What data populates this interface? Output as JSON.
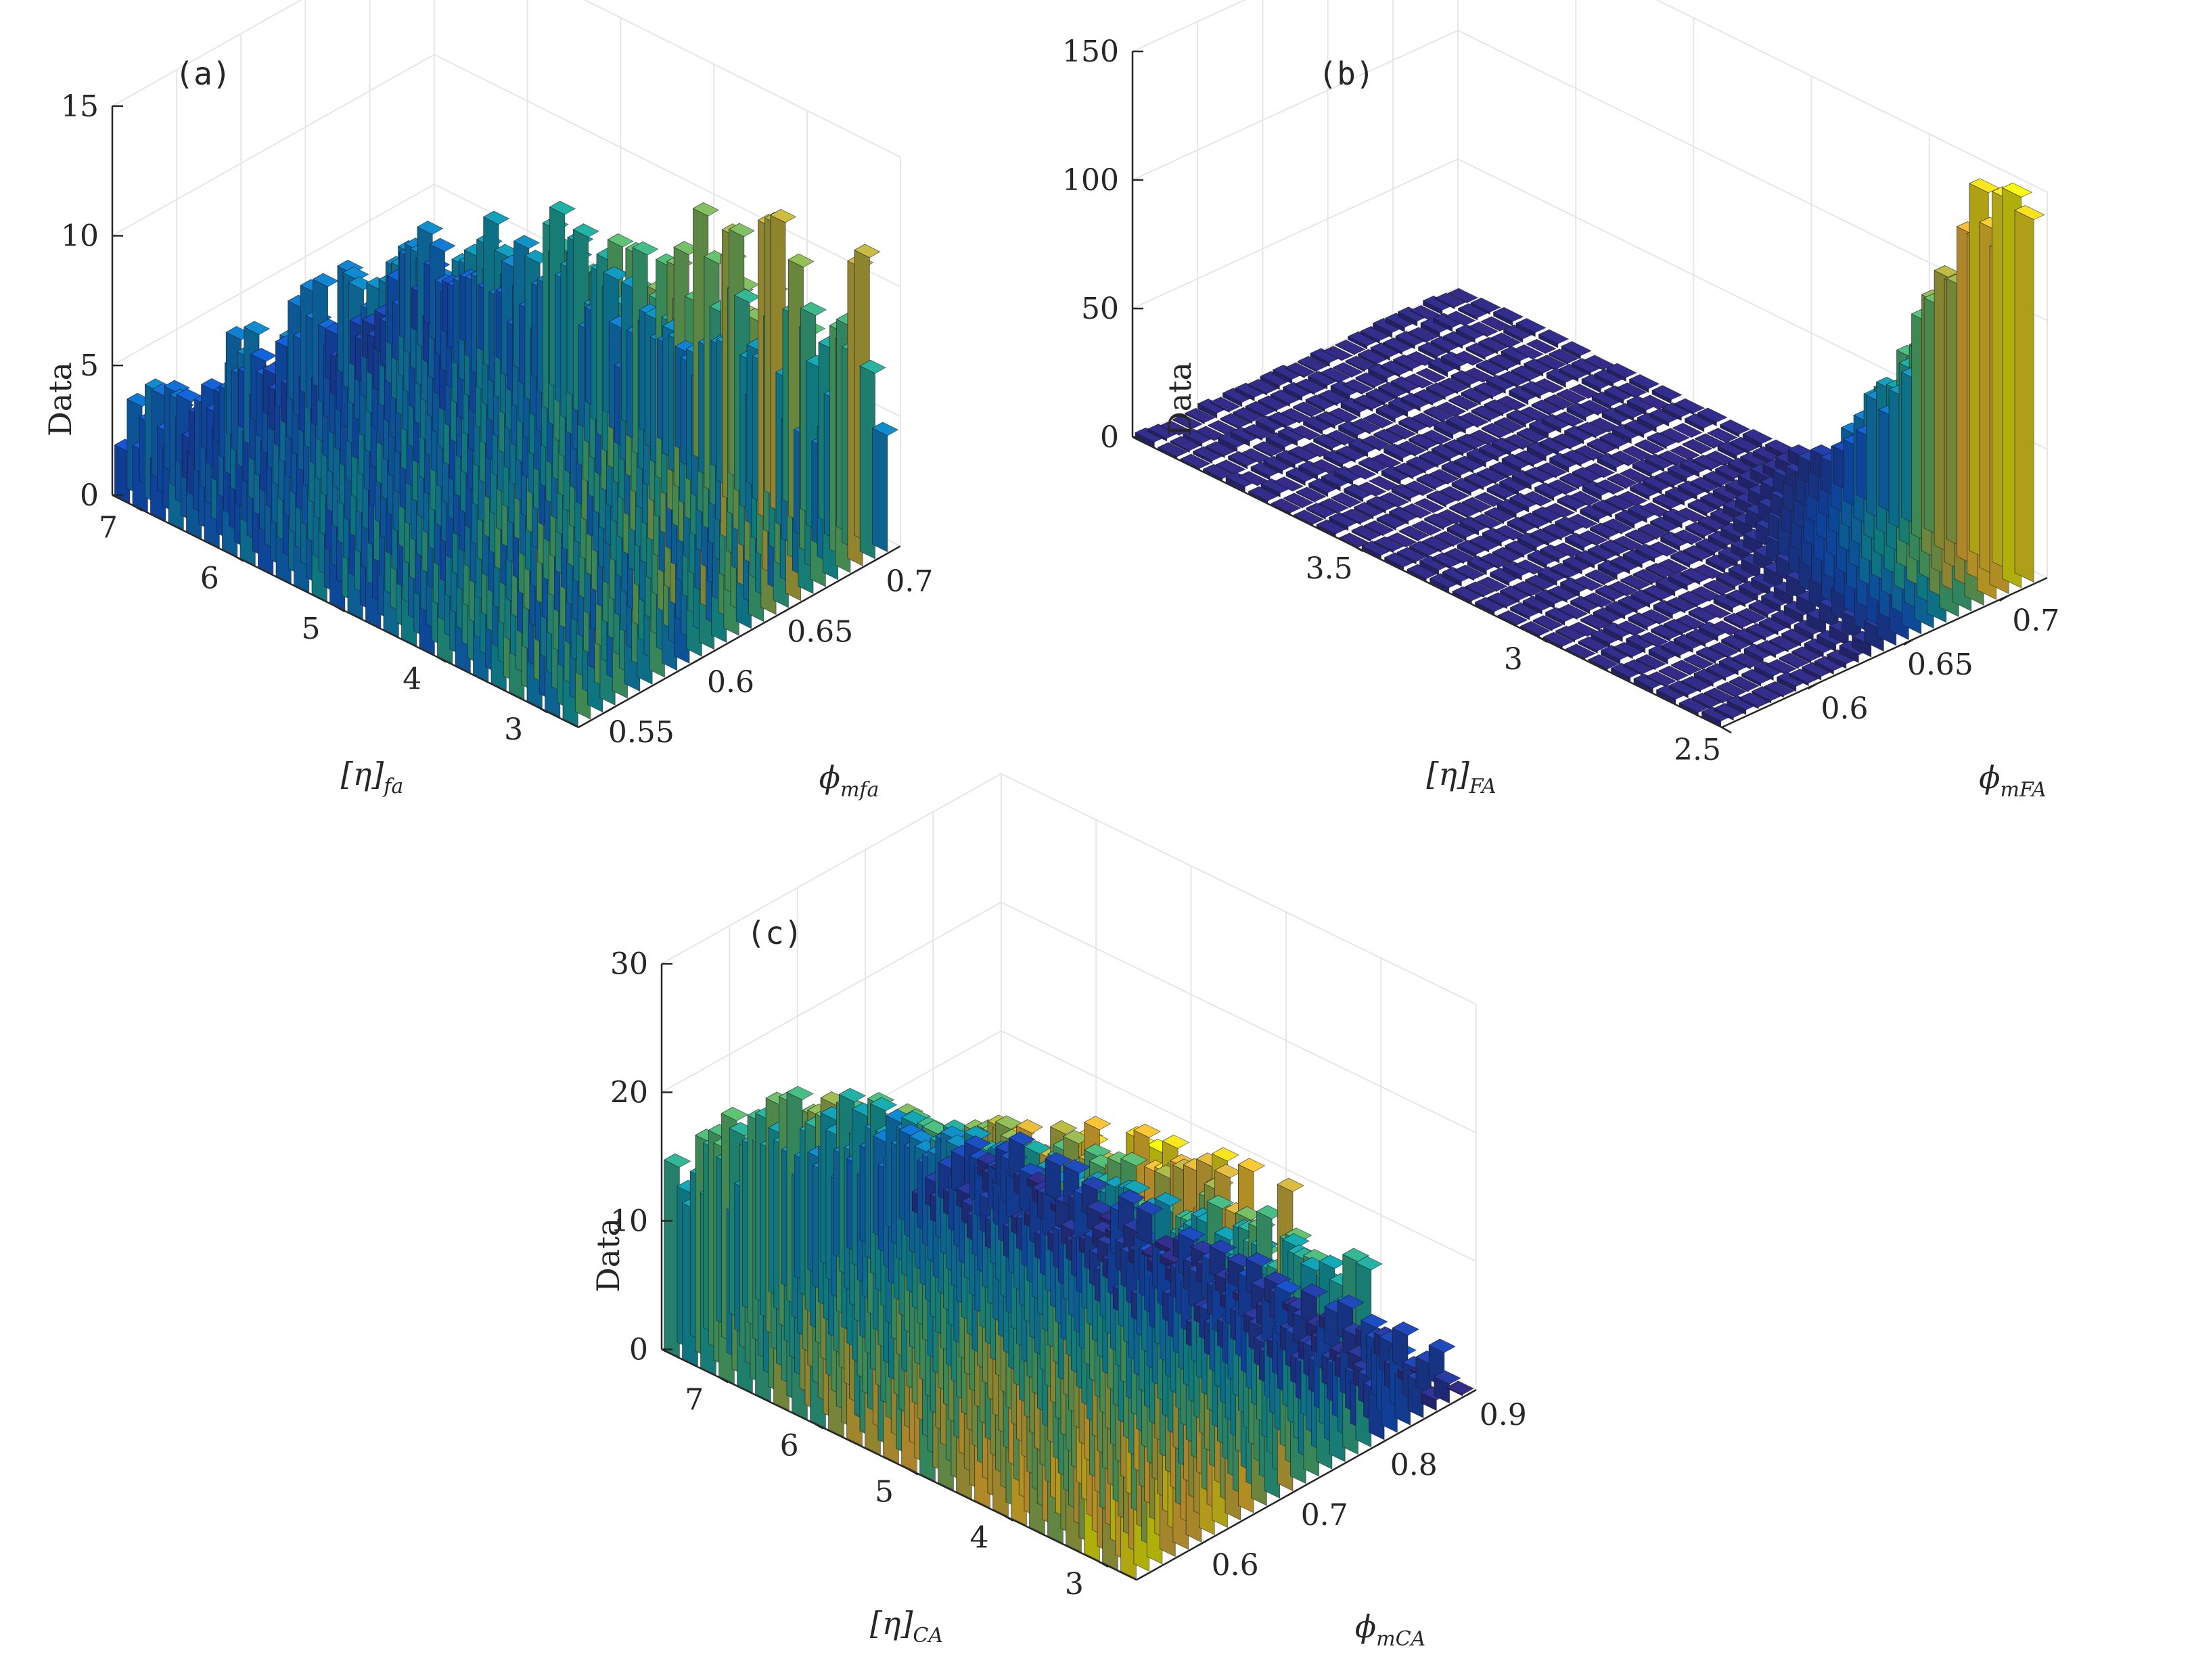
{
  "chart_data": [
    {
      "type": "bar3d",
      "panel_label": "(a)",
      "title": "",
      "zlabel": "Data",
      "xlabel_main": "[η]",
      "xlabel_sub": "fa",
      "ylabel_main": "ϕ",
      "ylabel_sub": "mfa",
      "x_ticks": [
        "3",
        "4",
        "5",
        "6",
        "7"
      ],
      "y_ticks": [
        "0.55",
        "0.6",
        "0.65",
        "0.7"
      ],
      "z_ticks": [
        "0",
        "5",
        "10",
        "15"
      ],
      "xlim": [
        2.6,
        7.2
      ],
      "ylim": [
        0.53,
        0.71
      ],
      "zlim": [
        0,
        15
      ],
      "bins": [
        30,
        30
      ],
      "distribution": "bimodal-uniform",
      "peak": 11,
      "colormap": "parula"
    },
    {
      "type": "bar3d",
      "panel_label": "(b)",
      "title": "",
      "zlabel": "Data",
      "xlabel_main": "[η]",
      "xlabel_sub": "FA",
      "ylabel_main": "ϕ",
      "ylabel_sub": "mFA",
      "x_ticks": [
        "2.5",
        "3",
        "3.5"
      ],
      "y_ticks": [
        "0.6",
        "0.65",
        "0.7"
      ],
      "z_ticks": [
        "0",
        "50",
        "100",
        "150"
      ],
      "xlim": [
        2.5,
        4.1
      ],
      "ylim": [
        0.55,
        0.72
      ],
      "zlim": [
        0,
        150
      ],
      "bins": [
        30,
        30
      ],
      "distribution": "peaked-corner",
      "peak": 152,
      "colormap": "parula"
    },
    {
      "type": "bar3d",
      "panel_label": "(c)",
      "title": "",
      "zlabel": "Data",
      "xlabel_main": "[η]",
      "xlabel_sub": "CA",
      "ylabel_main": "ϕ",
      "ylabel_sub": "mCA",
      "x_ticks": [
        "3",
        "4",
        "5",
        "6",
        "7"
      ],
      "y_ticks": [
        "0.6",
        "0.7",
        "0.8",
        "0.9"
      ],
      "z_ticks": [
        "0",
        "10",
        "20",
        "30"
      ],
      "xlim": [
        2.6,
        7.6
      ],
      "ylim": [
        0.52,
        0.9
      ],
      "zlim": [
        0,
        30
      ],
      "bins": [
        30,
        30
      ],
      "distribution": "declining-ridge",
      "peak": 32,
      "colormap": "parula"
    }
  ]
}
